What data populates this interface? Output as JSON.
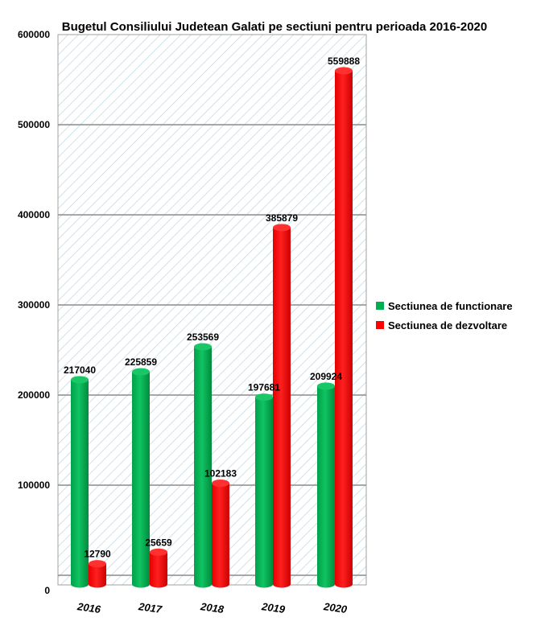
{
  "chart_data": {
    "type": "bar",
    "title": "Bugetul Consiliului Judetean Galati pe sectiuni pentru perioada 2016-2020",
    "categories": [
      "2016",
      "2017",
      "2018",
      "2019",
      "2020"
    ],
    "series": [
      {
        "name": "Sectiunea de functionare",
        "values": [
          217040,
          225859,
          253569,
          197681,
          209924
        ],
        "color": "#00b050"
      },
      {
        "name": "Sectiunea de dezvoltare",
        "values": [
          12790,
          25659,
          102183,
          385879,
          559888
        ],
        "color": "#ff0000"
      }
    ],
    "ylim": [
      0,
      600000
    ],
    "yticks": [
      0,
      100000,
      200000,
      300000,
      400000,
      500000,
      600000
    ],
    "grid": true,
    "legend_position": "right",
    "plot_background": "diagonal-hatch"
  }
}
